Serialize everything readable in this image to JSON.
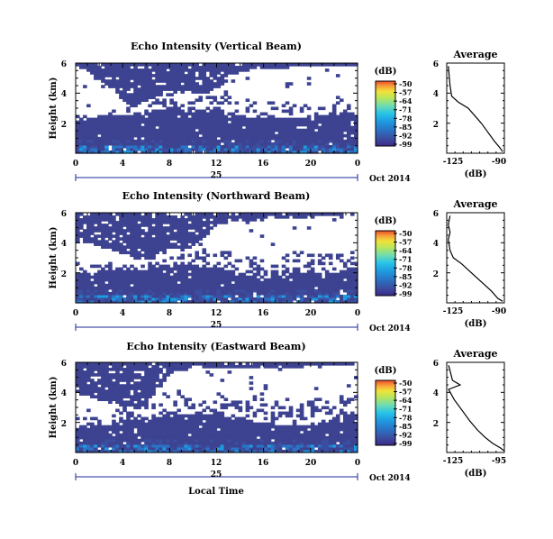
{
  "colors": {
    "background": "#3d4391",
    "colormap": [
      "#3b2a8a",
      "#3b4ea0",
      "#2a74c6",
      "#1f9be0",
      "#27c3e8",
      "#6fdcb0",
      "#b8e65a",
      "#f2e23a",
      "#f7a23a",
      "#ee4a2b"
    ],
    "axis": "#000000",
    "timeline": "#1a2a9a"
  },
  "chart_data": [
    {
      "type": "heatmap",
      "title": "Echo Intensity (Vertical Beam)",
      "ylabel": "Height (km)",
      "yticks": [
        "6",
        "4",
        "2"
      ],
      "xticks": [
        "0",
        "4",
        "8",
        "12",
        "16",
        "20",
        "0"
      ],
      "xlim": [
        0,
        24
      ],
      "ylim": [
        0,
        6
      ],
      "date_label": "25",
      "month_label": "Oct 2014",
      "colorbar": {
        "unit": "(dB)",
        "ticks": [
          "-50",
          "-57",
          "-64",
          "-71",
          "-78",
          "-85",
          "-92",
          "-99"
        ]
      },
      "echo_top_km": [
        5.9,
        5.5,
        5.0,
        4.4,
        3.5,
        3.1,
        3.0,
        2.9,
        2.9,
        3.2,
        3.4,
        3.6,
        4.2,
        5.0,
        5.5,
        5.6,
        5.6,
        5.6,
        5.7,
        5.8,
        5.8,
        5.8,
        5.9,
        5.9,
        5.9
      ],
      "cloud_base_km": [
        2.5,
        2.6,
        2.8,
        3.0,
        3.0,
        3.2,
        3.5,
        3.8,
        4.2,
        4.2,
        4.1,
        4.0,
        4.0,
        3.9,
        3.8,
        3.7,
        3.6,
        3.6,
        3.5,
        3.4,
        3.3,
        3.3,
        3.3,
        3.3,
        3.3
      ],
      "sparse_region_km": [
        2.1,
        2.3,
        2.5,
        2.6,
        2.6,
        2.6,
        2.7,
        2.9,
        3.1,
        3.0,
        2.9,
        2.8,
        2.7,
        2.6,
        2.5,
        2.4,
        2.3,
        2.3,
        2.3,
        2.4,
        2.5,
        2.5,
        2.6,
        2.7,
        2.6
      ]
    },
    {
      "type": "line",
      "title": "Average",
      "xlabel": "(dB)",
      "yticks": [
        "6",
        "4",
        "2"
      ],
      "xticks": [
        "-125",
        "-90"
      ],
      "xlim": [
        -125,
        -90
      ],
      "ylim": [
        0,
        6
      ],
      "series": [
        {
          "x": [
            -124,
            -123,
            -122,
            -118,
            -112,
            -108,
            -104,
            -100,
            -96,
            -93,
            -91
          ],
          "y": [
            5.8,
            4.5,
            3.8,
            3.4,
            3.0,
            2.5,
            2.0,
            1.4,
            0.8,
            0.4,
            0.1
          ]
        }
      ]
    },
    {
      "type": "heatmap",
      "title": "Echo Intensity (Northward Beam)",
      "ylabel": "Height (km)",
      "yticks": [
        "6",
        "4",
        "2"
      ],
      "xticks": [
        "0",
        "4",
        "8",
        "12",
        "16",
        "20",
        "0"
      ],
      "xlim": [
        0,
        24
      ],
      "ylim": [
        0,
        6
      ],
      "date_label": "25",
      "month_label": "Oct 2014",
      "colorbar": {
        "unit": "(dB)",
        "ticks": [
          "-50",
          "-57",
          "-64",
          "-71",
          "-78",
          "-85",
          "-92",
          "-99"
        ]
      },
      "echo_top_km": [
        4.2,
        4.0,
        3.8,
        3.6,
        3.3,
        3.1,
        3.0,
        3.0,
        3.1,
        3.5,
        3.8,
        4.4,
        5.2,
        5.4,
        5.5,
        5.5,
        5.6,
        5.6,
        5.6,
        5.7,
        5.7,
        5.8,
        5.8,
        5.9,
        5.9
      ],
      "cloud_base_km": [
        2.3,
        2.4,
        2.5,
        2.7,
        2.7,
        2.6,
        2.8,
        3.3,
        3.6,
        3.6,
        3.5,
        3.4,
        3.5,
        3.4,
        3.3,
        3.1,
        3.0,
        3.2,
        3.4,
        3.5,
        3.4,
        3.2,
        3.3,
        3.4,
        3.5
      ],
      "sparse_region_km": [
        1.9,
        2.0,
        2.1,
        2.2,
        2.2,
        2.1,
        2.2,
        2.4,
        2.6,
        2.6,
        2.5,
        2.4,
        2.4,
        2.2,
        2.0,
        1.8,
        1.6,
        1.8,
        2.0,
        2.1,
        2.0,
        1.9,
        2.0,
        2.2,
        2.4
      ]
    },
    {
      "type": "line",
      "title": "Average",
      "xlabel": "(dB)",
      "yticks": [
        "6",
        "4",
        "2"
      ],
      "xticks": [
        "-125",
        "-90"
      ],
      "xlim": [
        -125,
        -90
      ],
      "ylim": [
        0,
        6
      ],
      "series": [
        {
          "x": [
            -123,
            -124,
            -123,
            -124,
            -123,
            -121,
            -116,
            -110,
            -104,
            -98,
            -94,
            -91
          ],
          "y": [
            5.8,
            5.2,
            4.7,
            4.2,
            3.5,
            3.0,
            2.6,
            2.0,
            1.4,
            0.8,
            0.3,
            0.1
          ]
        }
      ]
    },
    {
      "type": "heatmap",
      "title": "Echo Intensity (Eastward Beam)",
      "ylabel": "Height (km)",
      "yticks": [
        "6",
        "4",
        "2"
      ],
      "xticks": [
        "0",
        "4",
        "8",
        "12",
        "16",
        "20",
        "0"
      ],
      "xlim": [
        0,
        24
      ],
      "ylim": [
        0,
        6
      ],
      "date_label": "25",
      "month_label": "Oct 2014",
      "colorbar": {
        "unit": "(dB)",
        "ticks": [
          "-50",
          "-57",
          "-64",
          "-71",
          "-78",
          "-85",
          "-92",
          "-99"
        ]
      },
      "echo_top_km": [
        4.0,
        3.8,
        3.5,
        3.3,
        3.1,
        3.0,
        3.0,
        4.2,
        5.3,
        5.5,
        5.6,
        5.6,
        5.6,
        5.6,
        5.6,
        5.6,
        5.7,
        5.7,
        5.7,
        5.7,
        5.8,
        5.8,
        5.8,
        5.8,
        5.9
      ],
      "cloud_base_km": [
        2.0,
        2.2,
        2.4,
        2.5,
        2.6,
        2.7,
        2.8,
        3.5,
        4.0,
        4.0,
        3.9,
        3.9,
        3.9,
        3.8,
        3.7,
        3.6,
        3.6,
        3.6,
        3.5,
        3.5,
        3.6,
        3.7,
        3.8,
        3.9,
        4.0
      ],
      "sparse_region_km": [
        1.6,
        1.7,
        1.8,
        1.9,
        2.1,
        2.1,
        2.2,
        2.4,
        2.6,
        2.6,
        2.6,
        2.6,
        2.5,
        2.4,
        2.2,
        2.1,
        2.0,
        1.9,
        1.8,
        1.8,
        1.9,
        2.0,
        2.2,
        2.3,
        2.5
      ]
    },
    {
      "type": "line",
      "title": "Average",
      "xlabel": "(dB)",
      "yticks": [
        "6",
        "4",
        "2"
      ],
      "xticks": [
        "-125",
        "-95"
      ],
      "xlim": [
        -125,
        -95
      ],
      "ylim": [
        0,
        6
      ],
      "series": [
        {
          "x": [
            -124,
            -123,
            -122,
            -118,
            -124,
            -121,
            -117,
            -113,
            -109,
            -105,
            -101,
            -97,
            -95
          ],
          "y": [
            5.8,
            5.3,
            4.8,
            4.5,
            4.2,
            3.5,
            2.8,
            2.1,
            1.5,
            1.0,
            0.6,
            0.3,
            0.1
          ]
        }
      ]
    }
  ],
  "footer": {
    "xlabel": "Local Time"
  }
}
